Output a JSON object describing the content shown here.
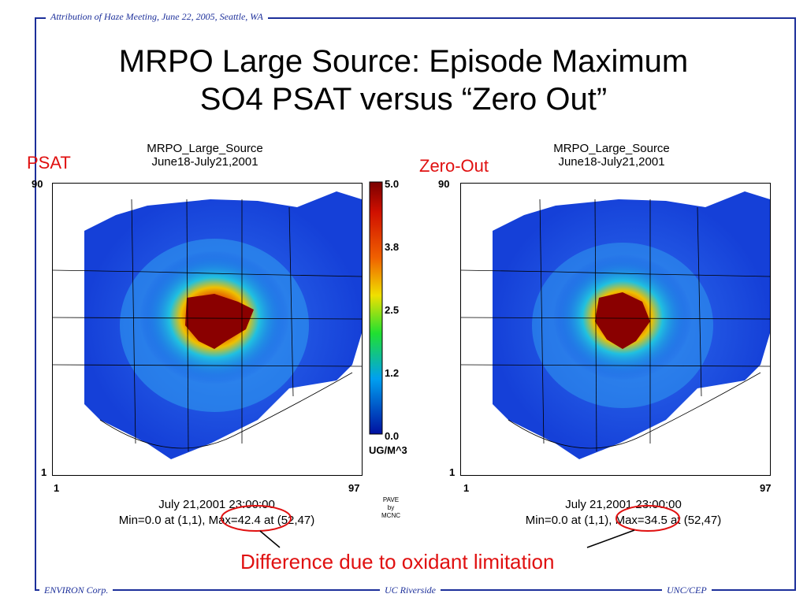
{
  "header": {
    "attribution": "Attribution of Haze Meeting, June 22, 2005, Seattle, WA"
  },
  "slide": {
    "title_line1": "MRPO Large Source:  Episode Maximum",
    "title_line2": "SO4 PSAT versus “Zero Out”"
  },
  "left_panel": {
    "label": "PSAT",
    "map_title1": "MRPO_Large_Source",
    "map_title2": "June18-July21,2001",
    "y_top": "90",
    "y_bottom": "1",
    "x_left": "1",
    "x_right": "97",
    "date": "July 21,2001 23:00:00",
    "minmax": "Min=0.0 at (1,1), Max=42.4 at (52,47)"
  },
  "right_panel": {
    "label": "Zero-Out",
    "map_title1": "MRPO_Large_Source",
    "map_title2": "June18-July21,2001",
    "y_top": "90",
    "y_bottom": "1",
    "x_left": "1",
    "x_right": "97",
    "date": "July 21,2001 23:00:00",
    "minmax": "Min=0.0 at (1,1), Max=34.5 at (52,47)"
  },
  "colorbar": {
    "ticks": [
      "5.0",
      "3.8",
      "2.5",
      "1.2",
      "0.0"
    ],
    "unit": "UG/M^3"
  },
  "pave": {
    "line1": "PAVE",
    "line2": "by",
    "line3": "MCNC"
  },
  "annotation": {
    "text": "Difference due to oxidant limitation"
  },
  "footer": {
    "left": "ENVIRON Corp.",
    "center": "UC Riverside",
    "right": "UNC/CEP"
  },
  "colors": {
    "frame": "#1c2f9a",
    "accent": "#e01010"
  }
}
